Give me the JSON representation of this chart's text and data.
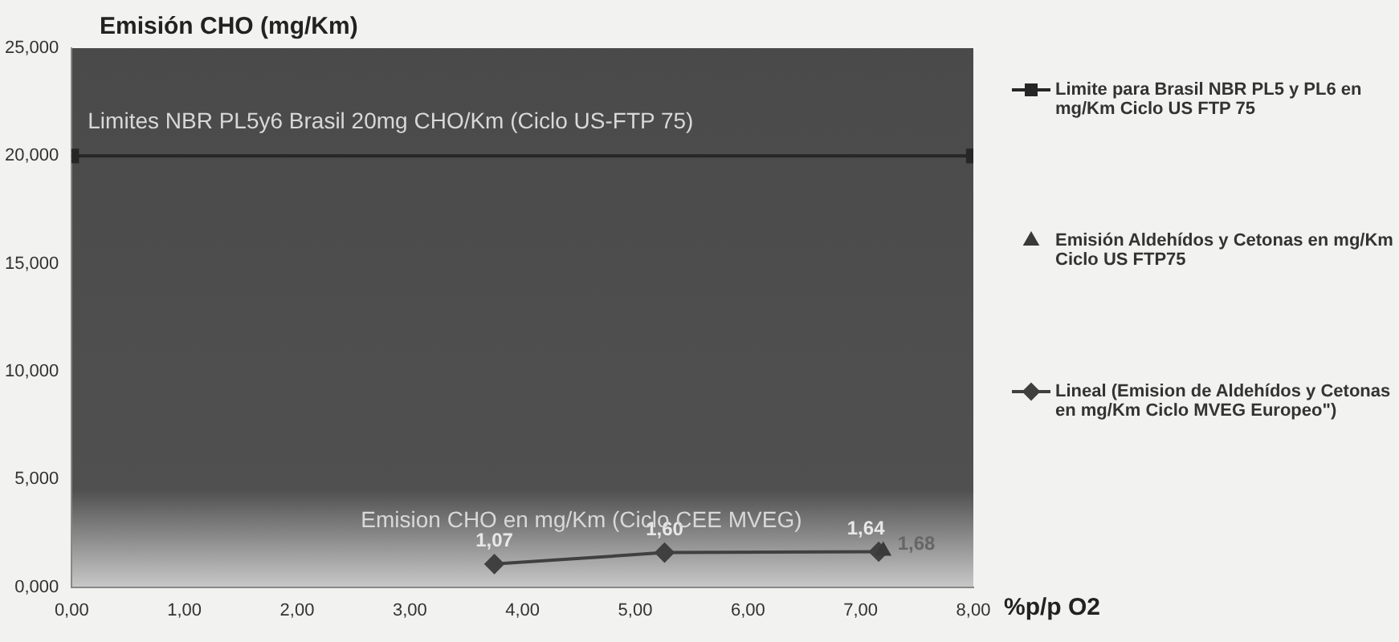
{
  "chart_data": {
    "type": "line",
    "ylabel": "Emisión CHO (mg/Km)",
    "xlabel": "%p/p O2",
    "xlim": [
      0,
      8
    ],
    "xticks": [
      {
        "value": 0,
        "label": "0,00"
      },
      {
        "value": 1,
        "label": "1,00"
      },
      {
        "value": 2,
        "label": "2,00"
      },
      {
        "value": 3,
        "label": "3,00"
      },
      {
        "value": 4,
        "label": "4,00"
      },
      {
        "value": 5,
        "label": "5,00"
      },
      {
        "value": 6,
        "label": "6,00"
      },
      {
        "value": 7,
        "label": "7,00"
      },
      {
        "value": 8,
        "label": "8,00"
      }
    ],
    "ylim": [
      0,
      25
    ],
    "yticks": [
      {
        "value": 0,
        "label": "0,000"
      },
      {
        "value": 5,
        "label": "5,000"
      },
      {
        "value": 10,
        "label": "10,000"
      },
      {
        "value": 15,
        "label": "15,000"
      },
      {
        "value": 20,
        "label": "20,000"
      },
      {
        "value": 25,
        "label": "25,000"
      }
    ],
    "series": [
      {
        "name": "Limite para Brasil NBR PL5 y PL6 en mg/Km Ciclo US FTP 75",
        "color": "#262626",
        "marker": "square",
        "x": [
          0,
          8
        ],
        "values": [
          20,
          20
        ]
      },
      {
        "name": "Emisión Aldehídos y Cetonas en mg/Km Ciclo US FTP75",
        "type": "scatter",
        "color": "#3a3a3a",
        "marker": "triangle",
        "x": [
          7.2
        ],
        "values": [
          1.68
        ],
        "value_labels": [
          "1,68"
        ]
      },
      {
        "name": "Lineal (Emision de Aldehídos y Cetonas en mg/Km Ciclo MVEG Europeo\")",
        "color": "#404040",
        "marker": "diamond",
        "x": [
          3.75,
          5.26,
          7.16
        ],
        "values": [
          1.07,
          1.6,
          1.64
        ],
        "value_labels": [
          "1,07",
          "1,60",
          "1,64"
        ]
      }
    ],
    "annotations": [
      "Limites NBR PL5y6 Brasil 20mg CHO/Km (Ciclo US-FTP 75)",
      "Emision CHO en mg/Km (Ciclo CEE MVEG)"
    ],
    "legend": "right",
    "grid": false
  }
}
